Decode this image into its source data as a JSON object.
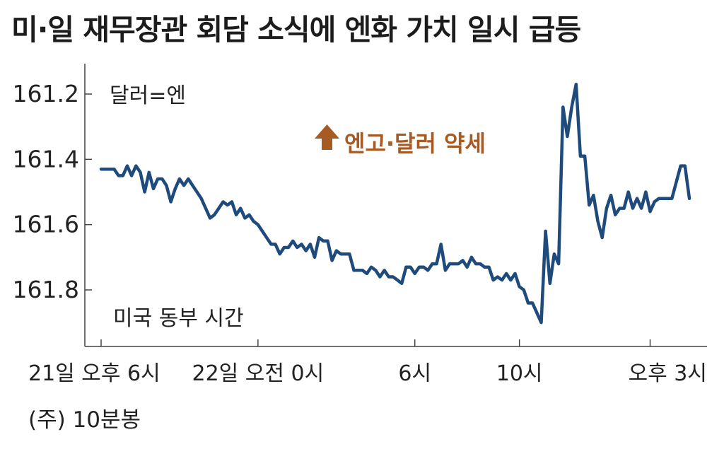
{
  "title": "미·일 재무장관 회담 소식에 엔화 가치 일시 급등",
  "footnote": "(주) 10분봉",
  "colors": {
    "line": "#1e4a7c",
    "annotation": "#a65a24",
    "axis": "#444444",
    "text": "#222222"
  },
  "chart_data": {
    "type": "line",
    "unit_label": "달러=엔",
    "time_label": "미국 동부 시간",
    "annotation": "엔고·달러 약세",
    "annotation_icon": "up-arrow-icon",
    "y_inverted": true,
    "ylim": [
      161.1,
      161.95
    ],
    "y_ticks": [
      161.2,
      161.4,
      161.6,
      161.8
    ],
    "y_tick_labels": [
      "161.2",
      "161.4",
      "161.6",
      "161.8"
    ],
    "x_ticks": [
      {
        "label": "21일 오후 6시",
        "t": 0
      },
      {
        "label": "22일 오전 0시",
        "t": 36
      },
      {
        "label": "6시",
        "t": 72
      },
      {
        "label": "10시",
        "t": 96
      },
      {
        "label": "오후 3시",
        "t": 126
      }
    ],
    "grid": false,
    "series": [
      {
        "values": [
          161.43,
          161.43,
          161.43,
          161.43,
          161.45,
          161.45,
          161.42,
          161.45,
          161.42,
          161.44,
          161.5,
          161.44,
          161.49,
          161.46,
          161.46,
          161.48,
          161.53,
          161.49,
          161.46,
          161.48,
          161.46,
          161.48,
          161.5,
          161.52,
          161.55,
          161.58,
          161.57,
          161.55,
          161.53,
          161.54,
          161.53,
          161.57,
          161.55,
          161.58,
          161.57,
          161.59,
          161.6,
          161.62,
          161.64,
          161.66,
          161.66,
          161.69,
          161.67,
          161.67,
          161.65,
          161.67,
          161.66,
          161.68,
          161.66,
          161.7,
          161.64,
          161.65,
          161.65,
          161.71,
          161.68,
          161.69,
          161.69,
          161.69,
          161.74,
          161.74,
          161.74,
          161.75,
          161.73,
          161.74,
          161.76,
          161.74,
          161.76,
          161.76,
          161.77,
          161.78,
          161.73,
          161.73,
          161.75,
          161.73,
          161.73,
          161.74,
          161.72,
          161.72,
          161.66,
          161.74,
          161.72,
          161.72,
          161.72,
          161.71,
          161.73,
          161.7,
          161.72,
          161.72,
          161.73,
          161.73,
          161.77,
          161.76,
          161.77,
          161.75,
          161.77,
          161.75,
          161.79,
          161.8,
          161.84,
          161.84,
          161.87,
          161.9,
          161.62,
          161.78,
          161.69,
          161.72,
          161.24,
          161.33,
          161.24,
          161.17,
          161.39,
          161.39,
          161.54,
          161.51,
          161.59,
          161.64,
          161.55,
          161.51,
          161.57,
          161.55,
          161.55,
          161.5,
          161.55,
          161.52,
          161.55,
          161.5,
          161.56,
          161.53,
          161.52,
          161.52,
          161.52,
          161.52,
          161.47,
          161.42,
          161.42,
          161.52
        ]
      }
    ]
  }
}
